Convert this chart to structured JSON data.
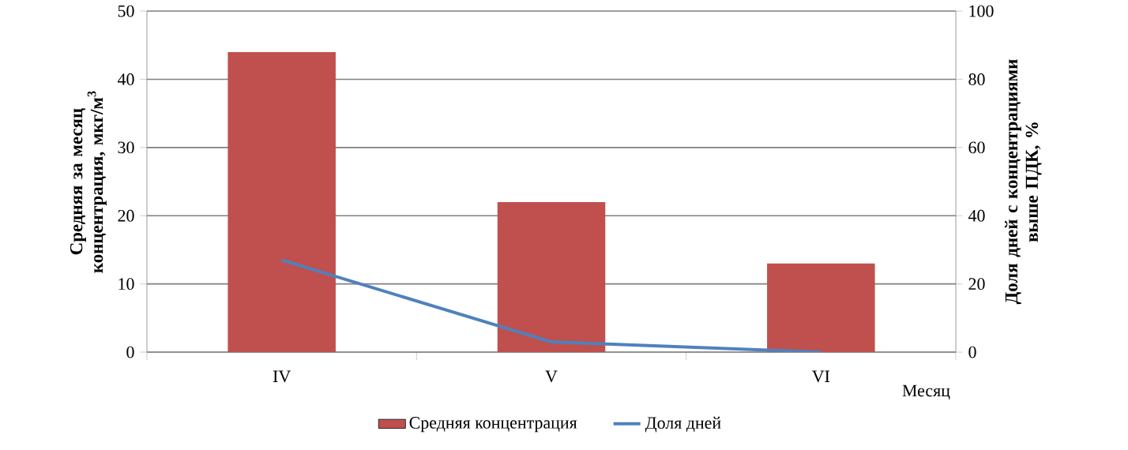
{
  "chart_data": {
    "type": "bar",
    "xlabel": "Месяц",
    "ylabel": "Средняя за месяц концентрация, мкг/м$^{3}$",
    "y2label": "Доля дней с концентрациями выше ПДК, %",
    "categories": [
      "IV",
      "V",
      "VI"
    ],
    "series": [
      {
        "name": "Средняя концентрация",
        "color": "#c0504d",
        "values": [
          44,
          22,
          13
        ]
      },
      {
        "name": "Доля дней",
        "type": "line",
        "axis": "y2",
        "color": "#4f81bd",
        "values": [
          27,
          3,
          0
        ]
      }
    ],
    "ylim": [
      0,
      50
    ],
    "yticks": [
      0,
      10,
      20,
      30,
      40,
      50
    ],
    "y2lim": [
      0,
      100
    ],
    "y2ticks": [
      0,
      20,
      40,
      60,
      80,
      100
    ],
    "grid": "y",
    "legend": "bottom"
  }
}
